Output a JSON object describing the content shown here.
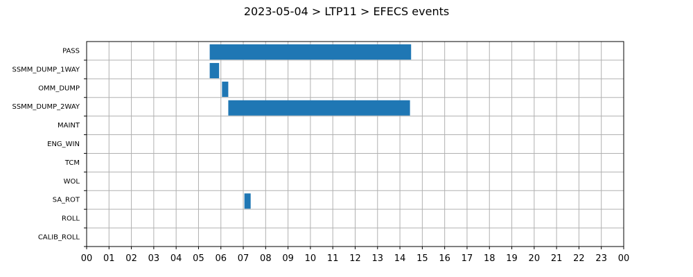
{
  "chart_data": {
    "type": "bar",
    "orientation": "horizontal-timeline",
    "title": "2023-05-04 > LTP11 > EFECS events",
    "xlabel": "",
    "ylabel": "",
    "x_unit": "hour of day",
    "xlim": [
      0,
      24
    ],
    "x_ticks": [
      "00",
      "01",
      "02",
      "03",
      "04",
      "05",
      "06",
      "07",
      "08",
      "09",
      "10",
      "11",
      "12",
      "13",
      "14",
      "15",
      "16",
      "17",
      "18",
      "19",
      "20",
      "21",
      "22",
      "23",
      "00"
    ],
    "categories": [
      "PASS",
      "SSMM_DUMP_1WAY",
      "OMM_DUMP",
      "SSMM_DUMP_2WAY",
      "MAINT",
      "ENG_WIN",
      "TCM",
      "WOL",
      "SA_ROT",
      "ROLL",
      "CALIB_ROLL"
    ],
    "grid": true,
    "bar_color": "#1f77b4",
    "events": [
      {
        "category": "PASS",
        "start": 5.5,
        "end": 14.5
      },
      {
        "category": "SSMM_DUMP_1WAY",
        "start": 5.5,
        "end": 5.92
      },
      {
        "category": "OMM_DUMP",
        "start": 6.05,
        "end": 6.33
      },
      {
        "category": "SSMM_DUMP_2WAY",
        "start": 6.33,
        "end": 14.45
      },
      {
        "category": "SA_ROT",
        "start": 7.05,
        "end": 7.33
      }
    ]
  }
}
